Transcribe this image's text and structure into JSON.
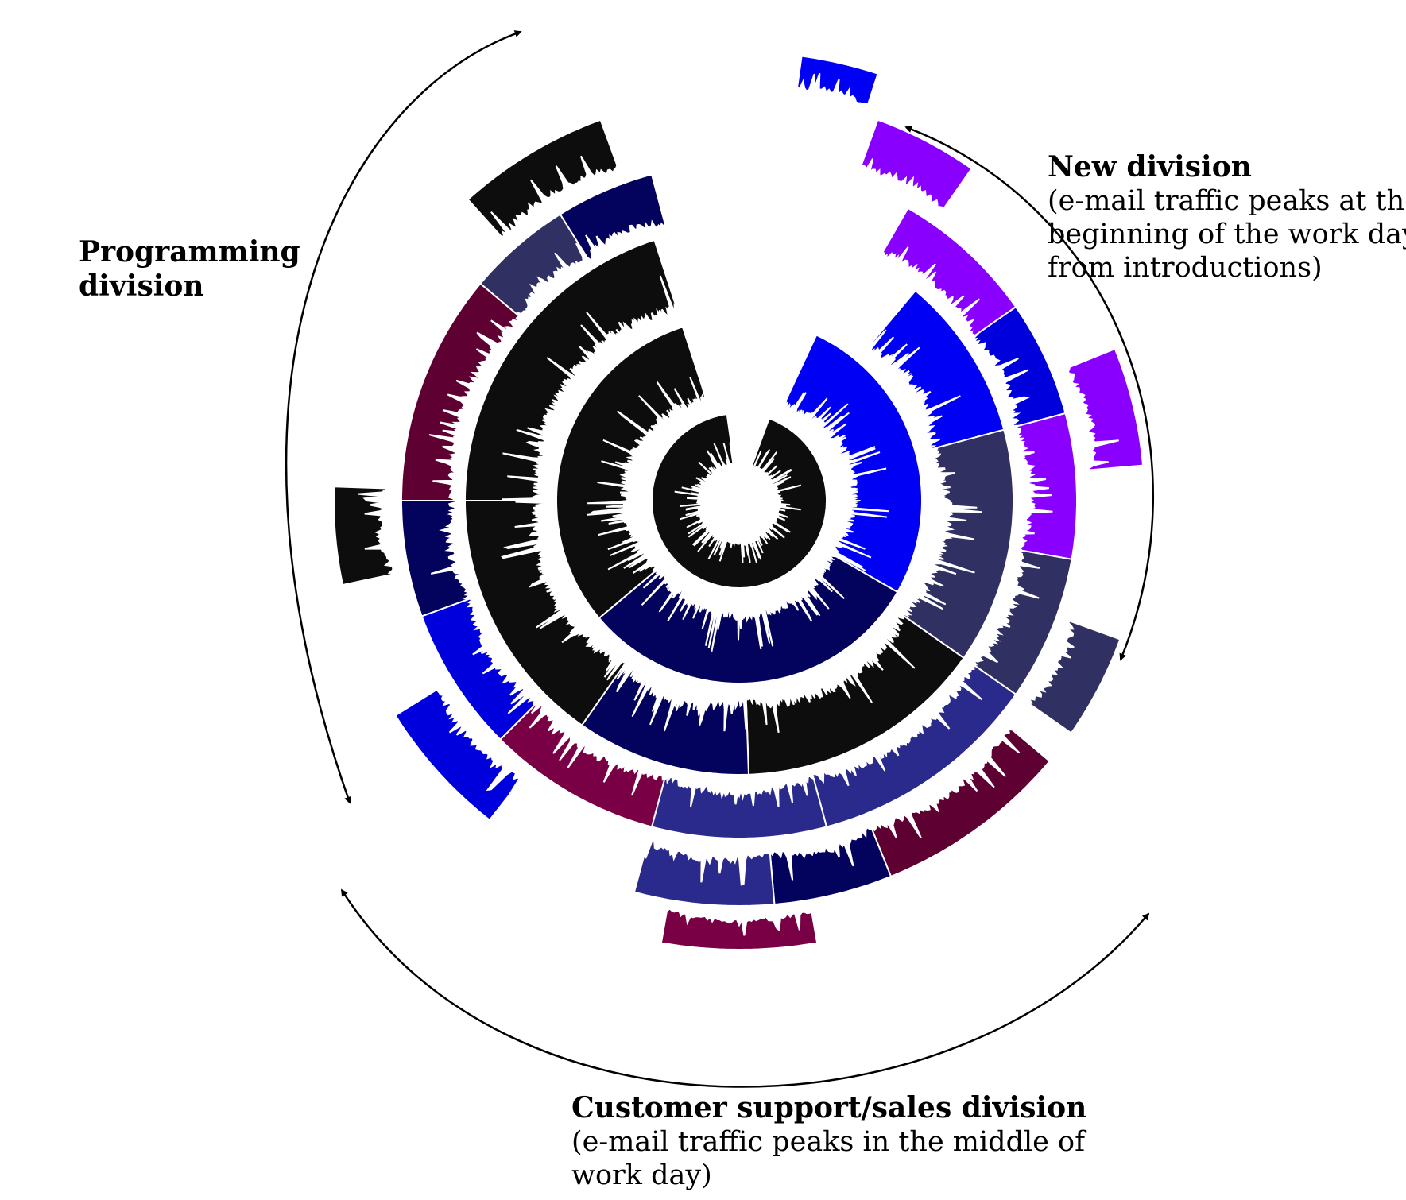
{
  "labels": {
    "programming": {
      "title_line1": "Programming",
      "title_line2": "division"
    },
    "new_division": {
      "title": "New division",
      "note_line1": "(e-mail traffic peaks at the",
      "note_line2": "beginning of the work day",
      "note_line3": "from introductions)"
    },
    "customer_support": {
      "title": "Customer support/sales division",
      "note_line1": "(e-mail traffic peaks in the middle of",
      "note_line2": "work day)"
    }
  },
  "colors": {
    "black": "#0d0d0d",
    "navy": "#03035e",
    "slate": "#303063",
    "indigo": "#2a2a8c",
    "blue": "#0000dd",
    "bright_blue": "#0000f5",
    "purple": "#8a00ff",
    "maroon": "#5e0032",
    "crimson": "#7a0045",
    "arrow": "#000000"
  },
  "icons": {
    "arrow": "arrowhead-icon"
  }
}
